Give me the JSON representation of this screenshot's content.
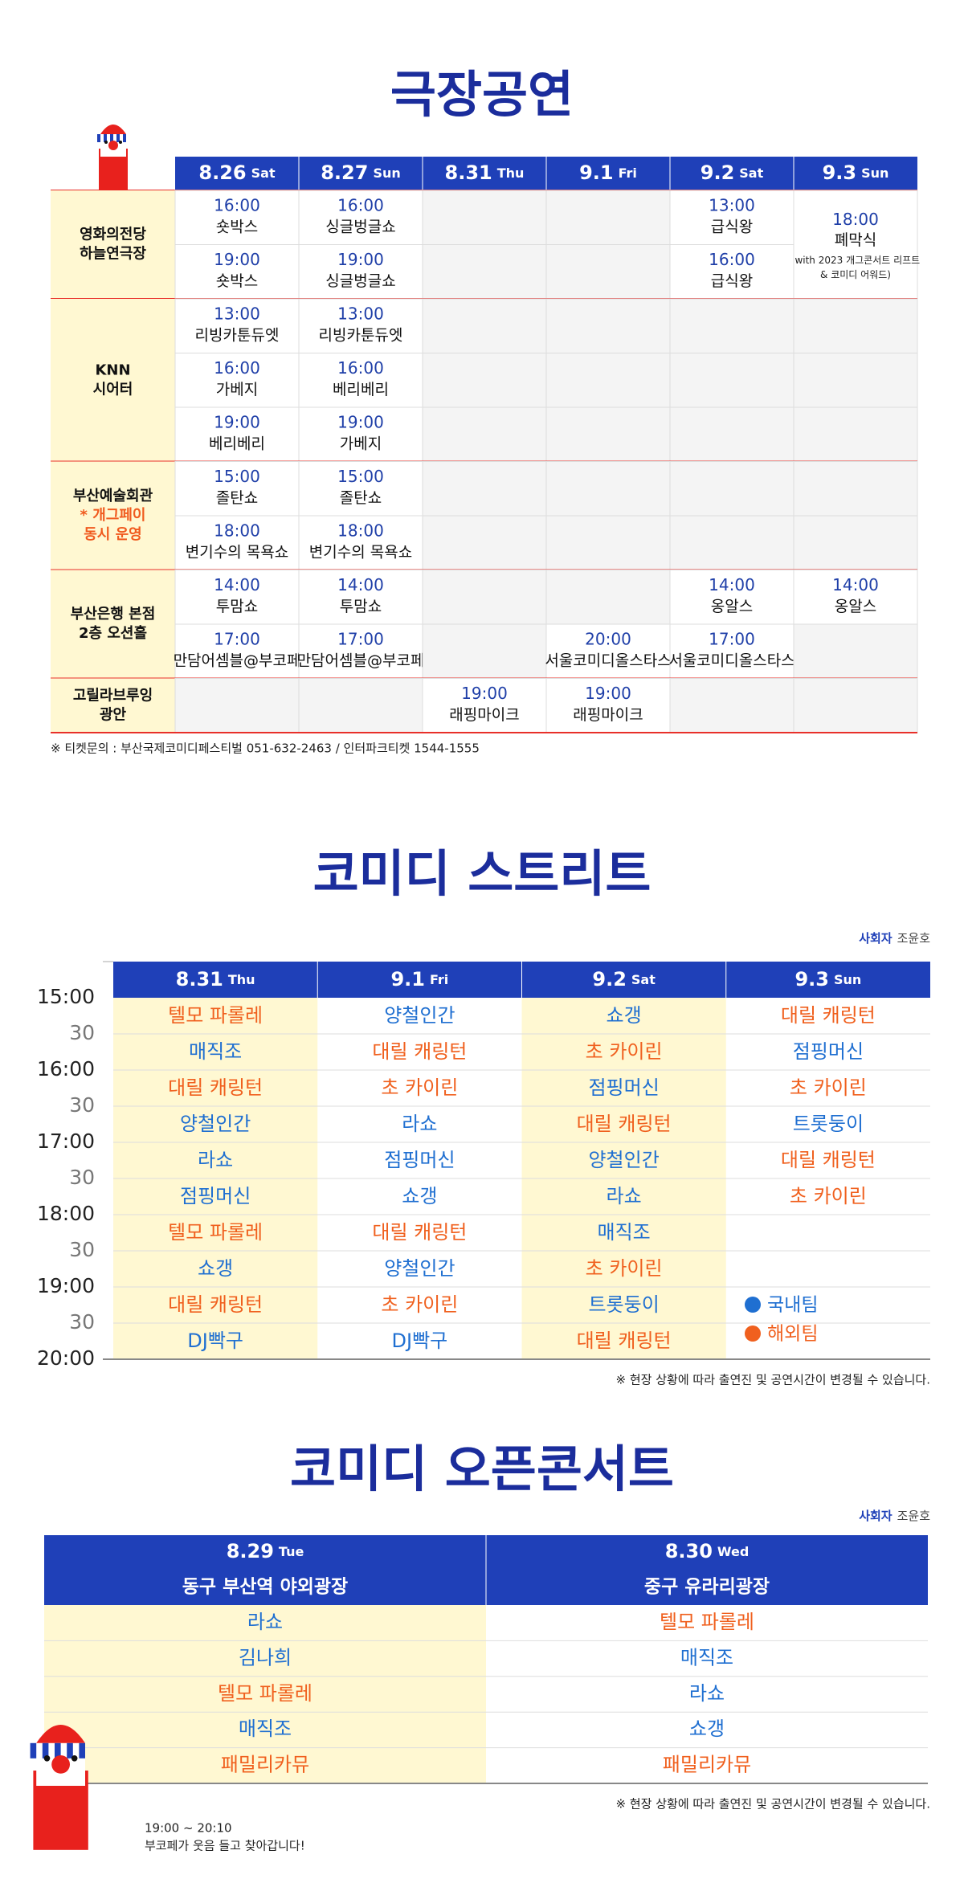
{
  "theater": {
    "title": "극장공연",
    "days": [
      {
        "date": "8.26",
        "day": "Sat"
      },
      {
        "date": "8.27",
        "day": "Sun"
      },
      {
        "date": "8.31",
        "day": "Thu"
      },
      {
        "date": "9.1",
        "day": "Fri"
      },
      {
        "date": "9.2",
        "day": "Sat"
      },
      {
        "date": "9.3",
        "day": "Sun"
      }
    ],
    "venues": [
      {
        "name": [
          "영화의전당",
          "하늘연극장"
        ],
        "slots": [
          [
            {
              "time": "16:00",
              "show": "숏박스"
            },
            {
              "time": "16:00",
              "show": "싱글벙글쇼"
            },
            null,
            null,
            {
              "time": "13:00",
              "show": "급식왕"
            },
            {
              "time": "18:00",
              "show": "폐막식",
              "note": [
                "(with 2023 개그콘서트 리프트",
                "& 코미디 어워드)"
              ]
            }
          ],
          [
            {
              "time": "19:00",
              "show": "숏박스"
            },
            {
              "time": "19:00",
              "show": "싱글벙글쇼"
            },
            null,
            null,
            {
              "time": "16:00",
              "show": "급식왕"
            },
            null
          ]
        ]
      },
      {
        "name": [
          "KNN",
          "시어터"
        ],
        "slots": [
          [
            {
              "time": "13:00",
              "show": "리빙카툰듀엣"
            },
            {
              "time": "13:00",
              "show": "리빙카툰듀엣"
            },
            null,
            null,
            null,
            null
          ],
          [
            {
              "time": "16:00",
              "show": "가베지"
            },
            {
              "time": "16:00",
              "show": "베리베리"
            },
            null,
            null,
            null,
            null
          ],
          [
            {
              "time": "19:00",
              "show": "베리베리"
            },
            {
              "time": "19:00",
              "show": "가베지"
            },
            null,
            null,
            null,
            null
          ]
        ]
      },
      {
        "name": [
          "부산예술회관"
        ],
        "note": [
          "* 개그페이",
          "동시 운영"
        ],
        "slots": [
          [
            {
              "time": "15:00",
              "show": "졸탄쇼"
            },
            {
              "time": "15:00",
              "show": "졸탄쇼"
            },
            null,
            null,
            null,
            null
          ],
          [
            {
              "time": "18:00",
              "show": "변기수의 목욕쇼"
            },
            {
              "time": "18:00",
              "show": "변기수의 목욕쇼"
            },
            null,
            null,
            null,
            null
          ]
        ]
      },
      {
        "name": [
          "부산은행 본점",
          "2층 오션홀"
        ],
        "slots": [
          [
            {
              "time": "14:00",
              "show": "투맘쇼"
            },
            {
              "time": "14:00",
              "show": "투맘쇼"
            },
            null,
            null,
            {
              "time": "14:00",
              "show": "옹알스"
            },
            {
              "time": "14:00",
              "show": "옹알스"
            }
          ],
          [
            {
              "time": "17:00",
              "show": "만담어셈블@부코페"
            },
            {
              "time": "17:00",
              "show": "만담어셈블@부코페"
            },
            null,
            {
              "time": "20:00",
              "show": "서울코미디올스타스"
            },
            {
              "time": "17:00",
              "show": "서울코미디올스타스"
            },
            null
          ]
        ]
      },
      {
        "name": [
          "고릴라브루잉",
          "광안"
        ],
        "slots": [
          [
            null,
            null,
            {
              "time": "19:00",
              "show": "래핑마이크"
            },
            {
              "time": "19:00",
              "show": "래핑마이크"
            },
            null,
            null
          ]
        ]
      }
    ],
    "footnote": "※ 티켓문의 : 부산국제코미디페스티벌 051-632-2463 / 인터파크티켓 1544-1555"
  },
  "street": {
    "title": "코미디 스트리트",
    "host_label": "사회자",
    "host": "조윤호",
    "times": [
      "15:00",
      "30",
      "16:00",
      "30",
      "17:00",
      "30",
      "18:00",
      "30",
      "19:00",
      "30",
      "20:00"
    ],
    "legend": [
      {
        "label": "국내팀",
        "color": "#1f6fd1"
      },
      {
        "label": "해외팀",
        "color": "#f0601e"
      }
    ],
    "days": [
      {
        "date": "8.31",
        "day": "Thu",
        "acts": [
          {
            "name": "텔모 파롤레",
            "team": "해외팀"
          },
          {
            "name": "매직조",
            "team": "국내팀"
          },
          {
            "name": "대릴 캐링턴",
            "team": "해외팀"
          },
          {
            "name": "양철인간",
            "team": "국내팀"
          },
          {
            "name": "라쇼",
            "team": "국내팀"
          },
          {
            "name": "점핑머신",
            "team": "국내팀"
          },
          {
            "name": "텔모 파롤레",
            "team": "해외팀"
          },
          {
            "name": "쇼갱",
            "team": "국내팀"
          },
          {
            "name": "대릴 캐링턴",
            "team": "해외팀"
          },
          {
            "name": "DJ빡구",
            "team": "국내팀"
          }
        ]
      },
      {
        "date": "9.1",
        "day": "Fri",
        "acts": [
          {
            "name": "양철인간",
            "team": "국내팀"
          },
          {
            "name": "대릴 캐링턴",
            "team": "해외팀"
          },
          {
            "name": "초 카이린",
            "team": "해외팀"
          },
          {
            "name": "라쇼",
            "team": "국내팀"
          },
          {
            "name": "점핑머신",
            "team": "국내팀"
          },
          {
            "name": "쇼갱",
            "team": "국내팀"
          },
          {
            "name": "대릴 캐링턴",
            "team": "해외팀"
          },
          {
            "name": "양철인간",
            "team": "국내팀"
          },
          {
            "name": "초 카이린",
            "team": "해외팀"
          },
          {
            "name": "DJ빡구",
            "team": "국내팀"
          }
        ]
      },
      {
        "date": "9.2",
        "day": "Sat",
        "acts": [
          {
            "name": "쇼갱",
            "team": "국내팀"
          },
          {
            "name": "초 카이린",
            "team": "해외팀"
          },
          {
            "name": "점핑머신",
            "team": "국내팀"
          },
          {
            "name": "대릴 캐링턴",
            "team": "해외팀"
          },
          {
            "name": "양철인간",
            "team": "국내팀"
          },
          {
            "name": "라쇼",
            "team": "국내팀"
          },
          {
            "name": "매직조",
            "team": "국내팀"
          },
          {
            "name": "초 카이린",
            "team": "해외팀"
          },
          {
            "name": "트롯둥이",
            "team": "국내팀"
          },
          {
            "name": "대릴 캐링턴",
            "team": "해외팀"
          }
        ]
      },
      {
        "date": "9.3",
        "day": "Sun",
        "acts": [
          {
            "name": "대릴 캐링턴",
            "team": "해외팀"
          },
          {
            "name": "점핑머신",
            "team": "국내팀"
          },
          {
            "name": "초 카이린",
            "team": "해외팀"
          },
          {
            "name": "트롯둥이",
            "team": "국내팀"
          },
          {
            "name": "대릴 캐링턴",
            "team": "해외팀"
          },
          {
            "name": "초 카이린",
            "team": "해외팀"
          }
        ]
      }
    ],
    "footnote": "※ 현장 상황에 따라 출연진 및 공연시간이 변경될 수 있습니다."
  },
  "concert": {
    "title": "코미디 오픈콘서트",
    "host_label": "사회자",
    "host": "조윤호",
    "columns": [
      {
        "date": "8.29",
        "day": "Tue",
        "place": "동구 부산역 야외광장",
        "acts": [
          {
            "name": "라쇼",
            "team": "국내팀"
          },
          {
            "name": "김나희",
            "team": "국내팀"
          },
          {
            "name": "텔모 파롤레",
            "team": "해외팀"
          },
          {
            "name": "매직조",
            "team": "국내팀"
          },
          {
            "name": "패밀리카뮤",
            "team": "해외팀"
          }
        ]
      },
      {
        "date": "8.30",
        "day": "Wed",
        "place": "중구 유라리광장",
        "acts": [
          {
            "name": "텔모 파롤레",
            "team": "해외팀"
          },
          {
            "name": "매직조",
            "team": "국내팀"
          },
          {
            "name": "라쇼",
            "team": "국내팀"
          },
          {
            "name": "쇼갱",
            "team": "국내팀"
          },
          {
            "name": "패밀리카뮤",
            "team": "해외팀"
          }
        ]
      }
    ],
    "footnote": "※ 현장 상황에 따라 출연진 및 공연시간이 변경될 수 있습니다.",
    "time": "19:00 ~ 20:10",
    "tagline": "부코페가 웃음 들고 찾아갑니다!"
  }
}
